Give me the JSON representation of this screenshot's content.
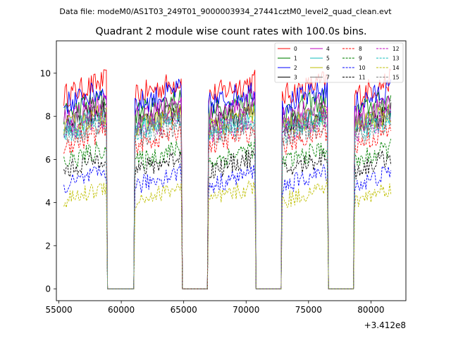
{
  "header": {
    "data_file": "Data file: modeM0/AS1T03_249T01_9000003934_27441cztM0_level2_quad_clean.evt"
  },
  "chart_data": {
    "type": "line",
    "title": "Quadrant 2 module wise count rates with 100.0s bins.",
    "xlabel": "",
    "ylabel": "",
    "x_offset_label": "+3.412e8",
    "xlim": [
      54800,
      82800
    ],
    "ylim": [
      -0.55,
      11.5
    ],
    "x_ticks": [
      55000,
      60000,
      65000,
      70000,
      75000,
      80000
    ],
    "x_tick_labels": [
      "55000",
      "60000",
      "65000",
      "70000",
      "75000",
      "80000"
    ],
    "y_ticks": [
      0,
      2,
      4,
      6,
      8,
      10
    ],
    "y_tick_labels": [
      "0",
      "2",
      "4",
      "6",
      "8",
      "10"
    ],
    "grid": false,
    "legend_position": "top-right",
    "bin_seconds": 100,
    "x_start": 55400,
    "x_end": 81600,
    "active_intervals": [
      [
        55400,
        58800
      ],
      [
        61100,
        64800
      ],
      [
        67000,
        70700
      ],
      [
        72900,
        76500
      ],
      [
        78700,
        81600
      ]
    ],
    "series": [
      {
        "name": "0",
        "color": "#ff0000",
        "style": "solid",
        "mean": 9.3
      },
      {
        "name": "1",
        "color": "#008000",
        "style": "solid",
        "mean": 8.5
      },
      {
        "name": "2",
        "color": "#0000ff",
        "style": "solid",
        "mean": 8.9
      },
      {
        "name": "3",
        "color": "#000000",
        "style": "solid",
        "mean": 7.9
      },
      {
        "name": "4",
        "color": "#bf00bf",
        "style": "solid",
        "mean": 8.3
      },
      {
        "name": "5",
        "color": "#1fbfbf",
        "style": "solid",
        "mean": 7.7
      },
      {
        "name": "6",
        "color": "#bfbf00",
        "style": "solid",
        "mean": 7.8
      },
      {
        "name": "7",
        "color": "#808080",
        "style": "solid",
        "mean": 8.0
      },
      {
        "name": "8",
        "color": "#ff0000",
        "style": "dashed",
        "mean": 7.0
      },
      {
        "name": "9",
        "color": "#008000",
        "style": "dashed",
        "mean": 6.2
      },
      {
        "name": "10",
        "color": "#0000ff",
        "style": "dashed",
        "mean": 5.1
      },
      {
        "name": "11",
        "color": "#000000",
        "style": "dashed",
        "mean": 5.8
      },
      {
        "name": "12",
        "color": "#bf00bf",
        "style": "dashed",
        "mean": 7.6
      },
      {
        "name": "13",
        "color": "#1fbfbf",
        "style": "dashed",
        "mean": 7.5
      },
      {
        "name": "14",
        "color": "#bfbf00",
        "style": "dashed",
        "mean": 4.4
      },
      {
        "name": "15",
        "color": "#808080",
        "style": "dashed",
        "mean": 7.3
      }
    ]
  }
}
